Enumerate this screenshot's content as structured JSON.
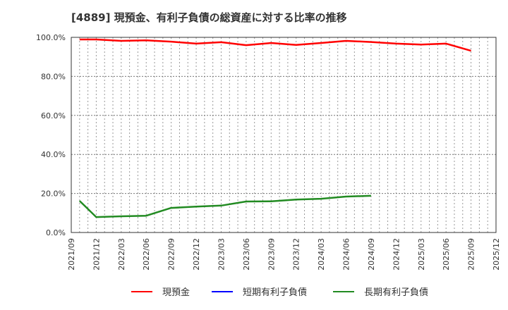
{
  "title": "[4889]  現預金、有利子負債の総資産に対する比率の推移",
  "legend": [
    {
      "label": "現預金",
      "color": "#ff0000"
    },
    {
      "label": "短期有利子負債",
      "color": "#0000ff"
    },
    {
      "label": "長期有利子負債",
      "color": "#228b22"
    }
  ],
  "chart_data": {
    "type": "line",
    "title": "[4889]  現預金、有利子負債の総資産に対する比率の推移",
    "xlabel": "",
    "ylabel": "",
    "ylim": [
      0,
      100
    ],
    "yticks": [
      "0.0%",
      "20.0%",
      "40.0%",
      "60.0%",
      "80.0%",
      "100.0%"
    ],
    "xticks": [
      "2021/09",
      "2021/12",
      "2022/03",
      "2022/06",
      "2022/09",
      "2022/12",
      "2023/03",
      "2023/06",
      "2023/09",
      "2023/12",
      "2024/03",
      "2024/06",
      "2024/09",
      "2024/12",
      "2025/03",
      "2025/06",
      "2025/09",
      "2025/12"
    ],
    "grid": true,
    "legend_position": "bottom",
    "series": [
      {
        "name": "現預金",
        "color": "#ff0000",
        "x": [
          "2021/10",
          "2021/12",
          "2022/03",
          "2022/06",
          "2022/09",
          "2022/12",
          "2023/03",
          "2023/06",
          "2023/09",
          "2023/12",
          "2024/03",
          "2024/06",
          "2024/09",
          "2024/12",
          "2025/03",
          "2025/06",
          "2025/09"
        ],
        "values": [
          98.9,
          98.9,
          98.2,
          98.5,
          97.8,
          96.8,
          97.5,
          96.0,
          97.1,
          96.1,
          97.1,
          98.2,
          97.6,
          96.8,
          96.3,
          96.8,
          93.1
        ]
      },
      {
        "name": "短期有利子負債",
        "color": "#0000ff",
        "x": [],
        "values": []
      },
      {
        "name": "長期有利子負債",
        "color": "#228b22",
        "x": [
          "2021/10",
          "2021/12",
          "2022/03",
          "2022/06",
          "2022/09",
          "2022/12",
          "2023/03",
          "2023/06",
          "2023/09",
          "2023/12",
          "2024/03",
          "2024/06",
          "2024/09"
        ],
        "values": [
          16.2,
          7.9,
          8.3,
          8.6,
          12.6,
          13.3,
          13.8,
          15.9,
          16.0,
          16.9,
          17.3,
          18.4,
          18.8
        ]
      }
    ]
  }
}
